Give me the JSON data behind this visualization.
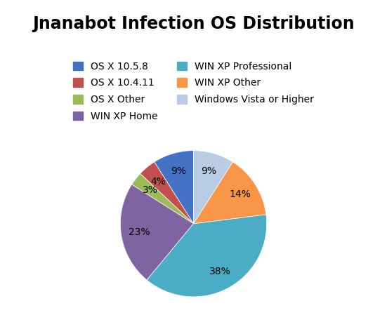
{
  "title": "Jnanabot Infection OS Distribution",
  "labels": [
    "OS X 10.5.8",
    "OS X 10.4.11",
    "OS X Other",
    "WIN XP Home",
    "WIN XP Professional",
    "WIN XP Other",
    "Windows Vista or Higher"
  ],
  "values": [
    9,
    4,
    3,
    23,
    38,
    14,
    9
  ],
  "colors": [
    "#4472C4",
    "#C0504D",
    "#9BBB59",
    "#8064A2",
    "#4BACC6",
    "#F79646",
    "#B8CCE4"
  ],
  "title_fontsize": 17,
  "legend_fontsize": 10,
  "pct_fontsize": 10,
  "background_color": "#FFFFFF",
  "startangle": 90
}
